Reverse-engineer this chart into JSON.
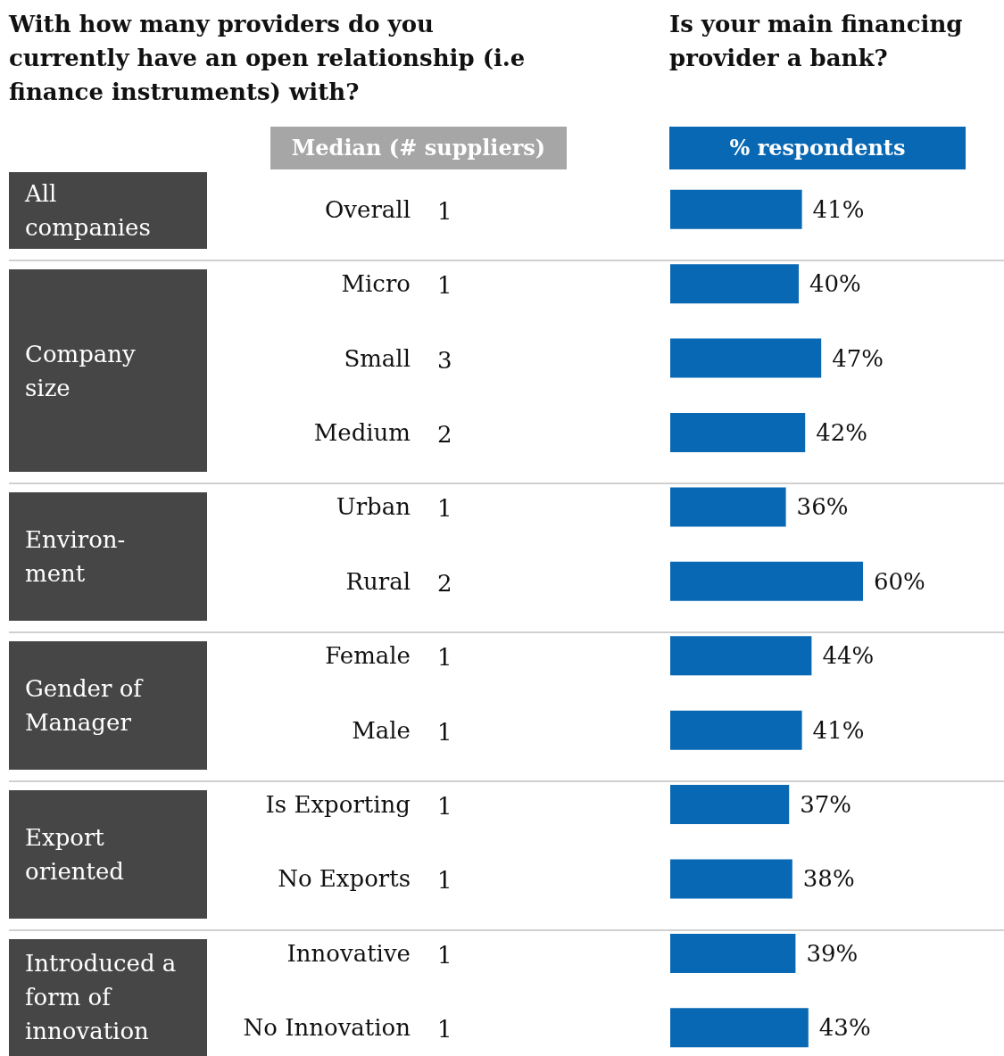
{
  "chart_data": [
    {
      "type": "other",
      "title": "With how many providers do you currently have an open relationship (i.e finance instruments) with?",
      "xlabel": "Median (# suppliers)",
      "values": [
        1,
        1,
        3,
        2,
        1,
        2,
        1,
        1,
        1,
        1,
        1,
        1
      ],
      "data_labels": true,
      "annotations": [
        {
          "text": "All\ncompanies",
          "y": "Overall"
        },
        {
          "text": "Company\nsize",
          "y": "Micro"
        },
        {
          "text": "Environ-\nment",
          "y": "Urban"
        },
        {
          "text": "Gender of\nManager",
          "y": "Female"
        },
        {
          "text": "Export\noriented",
          "y": "Is Exporting"
        },
        {
          "text": "Introduced a\nform of\ninnovation",
          "y": "Innovative"
        }
      ]
    },
    {
      "type": "bar",
      "orientation": "horizontal",
      "title": "Is your main financing provider a bank?",
      "xlabel": "% respondents",
      "tick_labels": "y",
      "grid": false,
      "categories": [
        "Overall",
        "Micro",
        "Small",
        "Medium",
        "Urban",
        "Rural",
        "Female",
        "Male",
        "Is Exporting",
        "No Exports",
        "Innovative",
        "No Innovation"
      ],
      "color": "#0868b3",
      "values": [
        41,
        40,
        47,
        42,
        36,
        60,
        44,
        41,
        37,
        38,
        39,
        43
      ],
      "value_labels": [
        "41%",
        "40%",
        "47%",
        "42%",
        "36%",
        "60%",
        "44%",
        "41%",
        "37%",
        "38%",
        "39%",
        "43%"
      ]
    }
  ]
}
